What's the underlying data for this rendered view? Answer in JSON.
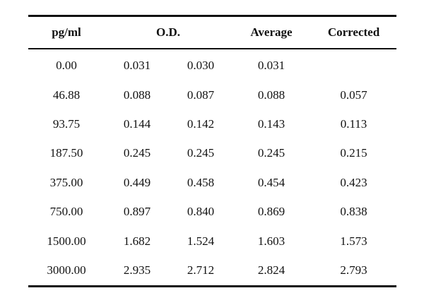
{
  "table": {
    "headers": {
      "pg": "pg/ml",
      "od": "O.D.",
      "average": "Average",
      "corrected": "Corrected"
    },
    "rows": [
      {
        "pg": "0.00",
        "od1": "0.031",
        "od2": "0.030",
        "average": "0.031",
        "corrected": ""
      },
      {
        "pg": "46.88",
        "od1": "0.088",
        "od2": "0.087",
        "average": "0.088",
        "corrected": "0.057"
      },
      {
        "pg": "93.75",
        "od1": "0.144",
        "od2": "0.142",
        "average": "0.143",
        "corrected": "0.113"
      },
      {
        "pg": "187.50",
        "od1": "0.245",
        "od2": "0.245",
        "average": "0.245",
        "corrected": "0.215"
      },
      {
        "pg": "375.00",
        "od1": "0.449",
        "od2": "0.458",
        "average": "0.454",
        "corrected": "0.423"
      },
      {
        "pg": "750.00",
        "od1": "0.897",
        "od2": "0.840",
        "average": "0.869",
        "corrected": "0.838"
      },
      {
        "pg": "1500.00",
        "od1": "1.682",
        "od2": "1.524",
        "average": "1.603",
        "corrected": "1.573"
      },
      {
        "pg": "3000.00",
        "od1": "2.935",
        "od2": "2.712",
        "average": "2.824",
        "corrected": "2.793"
      }
    ]
  }
}
